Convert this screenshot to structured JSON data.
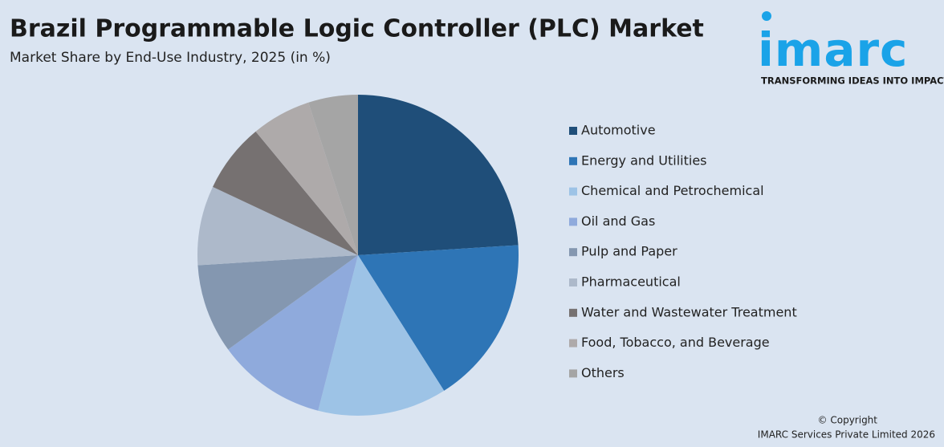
{
  "chart_data": {
    "type": "pie",
    "title": "Brazil Programmable Logic Controller (PLC) Market",
    "subtitle": "Market Share by End-Use Industry, 2025 (in %)",
    "categories": [
      "Automotive",
      "Energy and Utilities",
      "Chemical and Petrochemical",
      "Oil and Gas",
      "Pulp and Paper",
      "Pharmaceutical",
      "Water and Wastewater Treatment",
      "Food, Tobacco, and Beverage",
      "Others"
    ],
    "values": [
      24,
      17,
      13,
      11,
      9,
      8,
      7,
      6,
      5
    ],
    "colors": [
      "#1f4e79",
      "#2e75b6",
      "#9dc3e6",
      "#8faadc",
      "#8497b0",
      "#adb9ca",
      "#767171",
      "#aeaaaa",
      "#a5a5a5"
    ],
    "legend": "right"
  },
  "logo": {
    "name": "imarc",
    "tagline": "TRANSFORMING IDEAS INTO IMPACT"
  },
  "footer": {
    "copyright": "© Copyright",
    "company": "IMARC Services Private Limited 2026"
  }
}
